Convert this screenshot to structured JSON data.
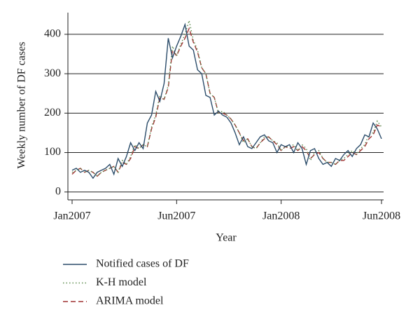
{
  "chart_data": {
    "type": "line",
    "xlabel": "Year",
    "ylabel": "Weekly number of DF cases",
    "categories": [
      "Jan2007",
      null,
      null,
      null,
      null,
      null,
      null,
      null,
      null,
      null,
      null,
      null,
      null,
      null,
      null,
      null,
      null,
      null,
      null,
      null,
      null,
      null,
      null,
      null,
      null,
      "Jun2007",
      null,
      null,
      null,
      null,
      null,
      null,
      null,
      null,
      null,
      null,
      null,
      null,
      null,
      null,
      null,
      null,
      null,
      null,
      null,
      null,
      null,
      null,
      null,
      null,
      "Jan2008",
      null,
      null,
      null,
      null,
      null,
      null,
      null,
      null,
      null,
      null,
      null,
      null,
      null,
      null,
      null,
      null,
      null,
      null,
      null,
      null,
      null,
      null,
      null,
      "Jun2008"
    ],
    "series": [
      {
        "name": "Notified cases of DF",
        "color": "#2b4c6a",
        "style": "solid",
        "values": [
          55,
          60,
          50,
          55,
          50,
          35,
          50,
          55,
          60,
          70,
          45,
          85,
          65,
          90,
          125,
          105,
          125,
          110,
          175,
          195,
          255,
          230,
          275,
          390,
          340,
          370,
          395,
          425,
          370,
          360,
          310,
          300,
          245,
          240,
          195,
          205,
          195,
          190,
          175,
          150,
          120,
          140,
          115,
          110,
          125,
          140,
          145,
          130,
          125,
          100,
          120,
          115,
          120,
          100,
          125,
          110,
          70,
          105,
          110,
          85,
          70,
          75,
          65,
          85,
          80,
          95,
          105,
          90,
          110,
          120,
          145,
          140,
          175,
          160,
          135
        ]
      },
      {
        "name": "K-H model",
        "color": "#5a8a4a",
        "style": "dotted",
        "values": [
          50,
          55,
          60,
          50,
          55,
          50,
          40,
          50,
          55,
          60,
          65,
          50,
          80,
          70,
          90,
          120,
          110,
          120,
          115,
          165,
          195,
          245,
          235,
          270,
          370,
          345,
          375,
          400,
          435,
          385,
          360,
          315,
          300,
          250,
          240,
          200,
          205,
          195,
          185,
          170,
          150,
          125,
          135,
          115,
          110,
          125,
          140,
          140,
          130,
          125,
          105,
          115,
          115,
          120,
          105,
          120,
          110,
          80,
          100,
          105,
          85,
          75,
          75,
          70,
          80,
          85,
          95,
          105,
          95,
          110,
          120,
          145,
          150,
          180,
          165
        ]
      },
      {
        "name": "ARIMA model",
        "color": "#a03232",
        "style": "dashed",
        "values": [
          45,
          55,
          60,
          50,
          55,
          50,
          40,
          50,
          55,
          60,
          65,
          50,
          75,
          70,
          85,
          115,
          110,
          120,
          115,
          160,
          190,
          240,
          235,
          265,
          360,
          345,
          370,
          390,
          415,
          380,
          355,
          315,
          300,
          250,
          240,
          200,
          200,
          195,
          185,
          170,
          150,
          130,
          135,
          115,
          110,
          125,
          135,
          140,
          130,
          120,
          105,
          115,
          110,
          115,
          105,
          115,
          105,
          85,
          95,
          100,
          85,
          75,
          75,
          70,
          80,
          80,
          90,
          100,
          95,
          105,
          115,
          135,
          145,
          170,
          165
        ]
      }
    ],
    "ylim": [
      -20,
      455
    ],
    "yticks": [
      0,
      100,
      200,
      300,
      400
    ],
    "grid": true
  }
}
